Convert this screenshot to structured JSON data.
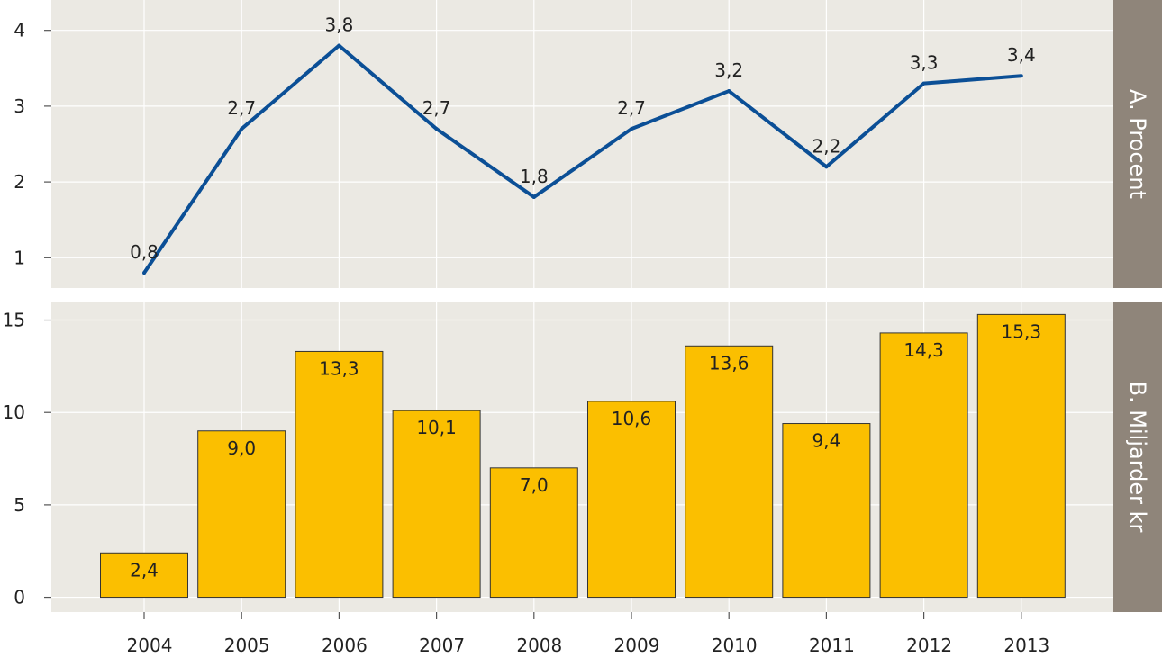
{
  "colors": {
    "panel_background": "#ebe9e3",
    "grid": "#ffffff",
    "line": "#0b4f96",
    "bar_fill": "#fbbf00",
    "bar_stroke": "#333333",
    "strip": "#8f857a"
  },
  "chart_data": [
    {
      "type": "line",
      "panel_label": "A. Procent",
      "x": [
        "2004",
        "2005",
        "2006",
        "2007",
        "2008",
        "2009",
        "2010",
        "2011",
        "2012",
        "2013"
      ],
      "values": [
        0.8,
        2.7,
        3.8,
        2.7,
        1.8,
        2.7,
        3.2,
        2.2,
        3.3,
        3.4
      ],
      "labels": [
        "0,8",
        "2,7",
        "3,8",
        "2,7",
        "1,8",
        "2,7",
        "3,2",
        "2,2",
        "3,3",
        "3,4"
      ],
      "yticks": [
        1,
        2,
        3,
        4
      ],
      "ylim": [
        0.6,
        4.4
      ],
      "grid": true
    },
    {
      "type": "bar",
      "panel_label": "B. Miljarder kr",
      "categories": [
        "2004",
        "2005",
        "2006",
        "2007",
        "2008",
        "2009",
        "2010",
        "2011",
        "2012",
        "2013"
      ],
      "values": [
        2.4,
        9.0,
        13.3,
        10.1,
        7.0,
        10.6,
        13.6,
        9.4,
        14.3,
        15.3
      ],
      "labels": [
        "2,4",
        "9,0",
        "13,3",
        "10,1",
        "7,0",
        "10,6",
        "13,6",
        "9,4",
        "14,3",
        "15,3"
      ],
      "yticks": [
        0,
        5,
        10,
        15
      ],
      "ylim": [
        -0.8,
        16.0
      ],
      "grid": true
    }
  ]
}
